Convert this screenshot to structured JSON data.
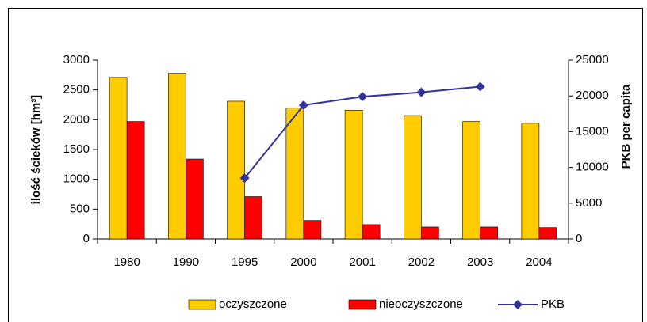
{
  "chart_data": {
    "type": "bar",
    "categories": [
      "1980",
      "1990",
      "1995",
      "2000",
      "2001",
      "2002",
      "2003",
      "2004"
    ],
    "ylabel": "ilość ścieków [hm³]",
    "y2label": "PKB per capita",
    "ylim": [
      0,
      3000
    ],
    "yticks": [
      0,
      500,
      1000,
      1500,
      2000,
      2500,
      3000
    ],
    "y2lim": [
      0,
      25000
    ],
    "y2ticks": [
      0,
      5000,
      10000,
      15000,
      20000,
      25000
    ],
    "series": [
      {
        "name": "oczyszczone",
        "type": "bar",
        "color": "#ffcc00",
        "values": [
          2710,
          2780,
          2310,
          2200,
          2160,
          2070,
          1970,
          1940
        ]
      },
      {
        "name": "nieoczyszczone",
        "type": "bar",
        "color": "#ff0000",
        "values": [
          1970,
          1340,
          710,
          310,
          240,
          200,
          200,
          190
        ]
      },
      {
        "name": "PKB",
        "type": "line",
        "axis": "y2",
        "color": "#333399",
        "values": [
          null,
          null,
          8500,
          18700,
          19900,
          20500,
          21300,
          null
        ]
      }
    ],
    "legend": "bottom"
  }
}
